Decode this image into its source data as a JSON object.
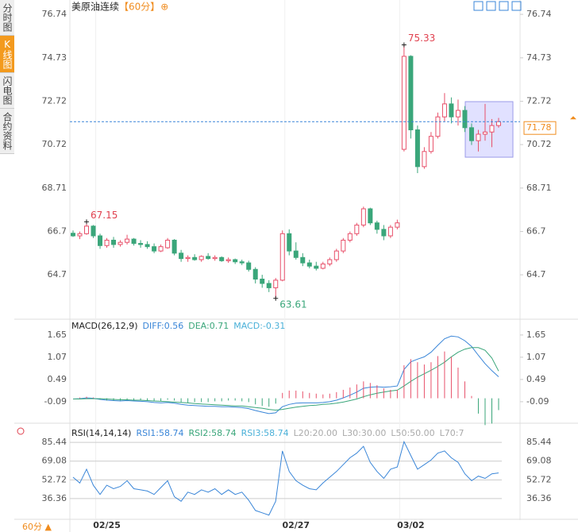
{
  "sidebar": {
    "tabs": [
      "分时图",
      "K线图",
      "闪电图",
      "合约资料"
    ],
    "active": 1
  },
  "period_button": "60分",
  "chart_data": [
    {
      "type": "candlestick",
      "title": "美原油连续",
      "interval": "【60分】",
      "up_color": "#e8506a",
      "down_color": "#3aa67a",
      "ylim": [
        62.72,
        77.22
      ],
      "yticks": [
        64.7,
        66.7,
        68.71,
        70.72,
        72.72,
        74.73,
        76.74
      ],
      "categories": [
        null,
        null,
        null,
        null,
        null,
        "02/25",
        null,
        null,
        null,
        null,
        null,
        null,
        null,
        null,
        null,
        null,
        null,
        null,
        null,
        null,
        null,
        null,
        null,
        null,
        null,
        null,
        null,
        null,
        null,
        null,
        null,
        null,
        null,
        "02/27",
        null,
        null,
        null,
        null,
        null,
        null,
        null,
        null,
        null,
        null,
        null,
        null,
        null,
        null,
        null,
        null,
        "03/02",
        null,
        null,
        null,
        null,
        null,
        null,
        null,
        null,
        null,
        null,
        null,
        null,
        null
      ],
      "candles": [
        [
          66.62,
          66.75,
          66.45,
          66.5
        ],
        [
          66.5,
          66.7,
          66.35,
          66.6
        ],
        [
          66.6,
          67.15,
          66.55,
          66.95
        ],
        [
          66.95,
          67.0,
          66.4,
          66.5
        ],
        [
          66.5,
          66.6,
          65.9,
          66.05
        ],
        [
          66.05,
          66.4,
          65.95,
          66.3
        ],
        [
          66.3,
          66.45,
          65.95,
          66.1
        ],
        [
          66.1,
          66.3,
          66.0,
          66.2
        ],
        [
          66.2,
          66.55,
          66.1,
          66.35
        ],
        [
          66.35,
          66.4,
          66.05,
          66.15
        ],
        [
          66.15,
          66.3,
          65.95,
          66.1
        ],
        [
          66.1,
          66.25,
          65.9,
          66.0
        ],
        [
          66.0,
          66.15,
          65.7,
          65.8
        ],
        [
          65.8,
          66.1,
          65.75,
          66.0
        ],
        [
          65.95,
          66.4,
          65.9,
          66.3
        ],
        [
          66.3,
          66.35,
          65.6,
          65.7
        ],
        [
          65.7,
          65.85,
          65.3,
          65.45
        ],
        [
          65.45,
          65.6,
          65.3,
          65.5
        ],
        [
          65.5,
          65.65,
          65.35,
          65.4
        ],
        [
          65.4,
          65.6,
          65.3,
          65.55
        ],
        [
          65.55,
          65.7,
          65.4,
          65.45
        ],
        [
          65.45,
          65.6,
          65.35,
          65.5
        ],
        [
          65.5,
          65.55,
          65.3,
          65.35
        ],
        [
          65.35,
          65.5,
          65.25,
          65.4
        ],
        [
          65.4,
          65.45,
          65.2,
          65.3
        ],
        [
          65.3,
          65.4,
          65.15,
          65.25
        ],
        [
          65.25,
          65.35,
          64.85,
          64.95
        ],
        [
          64.95,
          65.05,
          64.3,
          64.5
        ],
        [
          64.5,
          64.7,
          64.1,
          64.3
        ],
        [
          64.3,
          64.45,
          63.9,
          64.1
        ],
        [
          64.1,
          64.55,
          63.61,
          64.45
        ],
        [
          64.45,
          66.75,
          64.4,
          66.6
        ],
        [
          66.6,
          66.8,
          65.6,
          65.8
        ],
        [
          65.8,
          66.2,
          65.4,
          65.5
        ],
        [
          65.5,
          65.7,
          65.1,
          65.25
        ],
        [
          65.25,
          65.4,
          65.0,
          65.1
        ],
        [
          65.1,
          65.3,
          64.9,
          65.0
        ],
        [
          65.0,
          65.3,
          64.95,
          65.2
        ],
        [
          65.2,
          65.5,
          65.1,
          65.4
        ],
        [
          65.4,
          65.9,
          65.3,
          65.8
        ],
        [
          65.8,
          66.4,
          65.7,
          66.3
        ],
        [
          66.3,
          66.7,
          66.2,
          66.6
        ],
        [
          66.6,
          67.1,
          66.5,
          67.0
        ],
        [
          67.0,
          67.85,
          66.9,
          67.75
        ],
        [
          67.75,
          67.8,
          67.0,
          67.1
        ],
        [
          67.1,
          67.2,
          66.6,
          66.8
        ],
        [
          66.8,
          67.0,
          66.3,
          66.5
        ],
        [
          66.5,
          67.0,
          66.4,
          66.9
        ],
        [
          66.9,
          67.25,
          66.8,
          67.1
        ],
        [
          70.5,
          75.33,
          70.4,
          74.8
        ],
        [
          74.8,
          74.85,
          71.0,
          71.4
        ],
        [
          71.4,
          71.6,
          69.4,
          69.7
        ],
        [
          69.7,
          70.6,
          69.6,
          70.4
        ],
        [
          70.4,
          71.3,
          70.3,
          71.1
        ],
        [
          71.1,
          72.2,
          71.0,
          72.0
        ],
        [
          72.0,
          73.1,
          71.8,
          72.6
        ],
        [
          72.6,
          72.9,
          71.7,
          72.0
        ],
        [
          72.0,
          72.8,
          71.6,
          72.3
        ],
        [
          72.3,
          72.5,
          71.3,
          71.5
        ],
        [
          71.5,
          71.7,
          70.7,
          70.9
        ],
        [
          70.9,
          71.4,
          70.4,
          71.2
        ],
        [
          71.2,
          72.6,
          70.9,
          71.3
        ],
        [
          71.3,
          71.9,
          70.6,
          71.6
        ],
        [
          71.6,
          71.95,
          71.5,
          71.78
        ]
      ],
      "annotations": [
        {
          "x": 49,
          "y": 75.33,
          "color": "#e0404e"
        },
        {
          "x": 30,
          "y": 63.61,
          "color": "#3aa67a"
        },
        {
          "x": 2,
          "y": 67.15,
          "color": "#e0404e"
        }
      ],
      "last_price": 71.78,
      "last_price_color": "#f08c1e"
    },
    {
      "type": "macd",
      "title": "MACD(26,12,9)",
      "ylim": [
        -0.63,
        2.02
      ],
      "yticks": [
        -0.09,
        0.49,
        1.07,
        1.65
      ],
      "series": [
        {
          "name": "DIFF:0.56",
          "color": "#3a86d8",
          "values": [
            -0.02,
            -0.01,
            0.01,
            0.0,
            -0.03,
            -0.05,
            -0.06,
            -0.07,
            -0.06,
            -0.07,
            -0.08,
            -0.09,
            -0.11,
            -0.12,
            -0.11,
            -0.13,
            -0.16,
            -0.18,
            -0.19,
            -0.2,
            -0.21,
            -0.21,
            -0.22,
            -0.22,
            -0.23,
            -0.24,
            -0.27,
            -0.32,
            -0.36,
            -0.4,
            -0.38,
            -0.22,
            -0.16,
            -0.13,
            -0.12,
            -0.12,
            -0.12,
            -0.11,
            -0.09,
            -0.05,
            0.01,
            0.08,
            0.16,
            0.26,
            0.29,
            0.3,
            0.29,
            0.3,
            0.32,
            0.75,
            0.95,
            1.02,
            1.08,
            1.2,
            1.38,
            1.55,
            1.62,
            1.6,
            1.5,
            1.35,
            1.12,
            0.9,
            0.72,
            0.56
          ]
        },
        {
          "name": "DEA:0.71",
          "color": "#3aa67a",
          "values": [
            -0.02,
            -0.02,
            -0.01,
            -0.01,
            -0.01,
            -0.02,
            -0.03,
            -0.04,
            -0.04,
            -0.05,
            -0.05,
            -0.06,
            -0.07,
            -0.08,
            -0.09,
            -0.1,
            -0.11,
            -0.12,
            -0.14,
            -0.15,
            -0.16,
            -0.17,
            -0.18,
            -0.19,
            -0.2,
            -0.2,
            -0.22,
            -0.24,
            -0.26,
            -0.29,
            -0.31,
            -0.29,
            -0.26,
            -0.23,
            -0.21,
            -0.19,
            -0.18,
            -0.16,
            -0.15,
            -0.13,
            -0.1,
            -0.06,
            -0.02,
            0.04,
            0.09,
            0.13,
            0.16,
            0.19,
            0.21,
            0.32,
            0.44,
            0.55,
            0.64,
            0.73,
            0.83,
            0.94,
            1.08,
            1.2,
            1.28,
            1.32,
            1.32,
            1.25,
            1.05,
            0.71
          ]
        },
        {
          "name": "MACD:-0.31",
          "color": "#4ab0d8",
          "up_color": "#e8506a",
          "down_color": "#3aa67a",
          "bars": true,
          "values": [
            0.0,
            0.02,
            0.04,
            0.02,
            -0.04,
            -0.06,
            -0.06,
            -0.06,
            -0.04,
            -0.04,
            -0.06,
            -0.06,
            -0.08,
            -0.08,
            -0.04,
            -0.06,
            -0.1,
            -0.12,
            -0.1,
            -0.1,
            -0.1,
            -0.08,
            -0.08,
            -0.06,
            -0.06,
            -0.08,
            -0.1,
            -0.16,
            -0.2,
            -0.22,
            -0.14,
            0.14,
            0.2,
            0.2,
            0.18,
            0.14,
            0.12,
            0.1,
            0.12,
            0.16,
            0.22,
            0.28,
            0.36,
            0.44,
            0.4,
            0.34,
            0.26,
            0.22,
            0.22,
            0.86,
            1.02,
            0.94,
            0.88,
            0.94,
            1.1,
            1.22,
            1.08,
            0.8,
            0.44,
            0.06,
            -0.4,
            -0.7,
            -0.66,
            -0.31
          ]
        }
      ]
    },
    {
      "type": "line",
      "title": "RSI(14,14,14)",
      "ylim": [
        17.6,
        98.7
      ],
      "yticks": [
        36.36,
        52.72,
        69.08,
        85.44
      ],
      "grid": true,
      "series": [
        {
          "name": "RSI1:58.74",
          "color": "#3a86d8",
          "values": [
            55,
            50,
            62,
            48,
            40,
            48,
            45,
            47,
            52,
            45,
            44,
            43,
            40,
            46,
            52,
            38,
            34,
            42,
            40,
            44,
            42,
            45,
            40,
            44,
            40,
            42,
            35,
            26,
            24,
            22,
            34,
            78,
            60,
            52,
            48,
            45,
            44,
            50,
            55,
            60,
            66,
            72,
            76,
            82,
            68,
            60,
            54,
            62,
            64,
            86,
            74,
            62,
            66,
            70,
            76,
            78,
            72,
            68,
            58,
            52,
            56,
            54,
            58,
            58.74
          ]
        }
      ],
      "legend_extra": [
        {
          "text": "RSI2:58.74",
          "color": "#3aa67a"
        },
        {
          "text": "RSI3:58.74",
          "color": "#4ab0d8"
        },
        {
          "text": "L20:20.00",
          "color": "#aaaaaa"
        },
        {
          "text": "L30:30.00",
          "color": "#aaaaaa"
        },
        {
          "text": "L50:50.00",
          "color": "#aaaaaa"
        },
        {
          "text": "L70:7",
          "color": "#aaaaaa"
        }
      ]
    }
  ]
}
